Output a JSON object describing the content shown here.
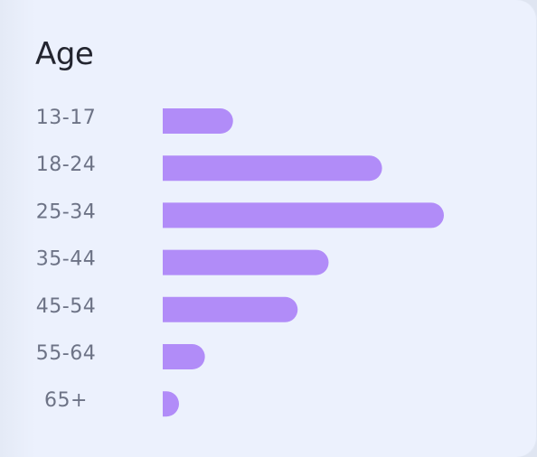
{
  "chart_data": {
    "type": "bar",
    "orientation": "horizontal",
    "title": "Age",
    "xlabel": "",
    "ylabel": "",
    "categories": [
      "13-17",
      "18-24",
      "25-34",
      "35-44",
      "45-54",
      "55-64",
      "65+"
    ],
    "values": [
      25,
      78,
      100,
      59,
      48,
      15,
      5
    ],
    "xlim": [
      0,
      100
    ],
    "grid": false,
    "legend": "none",
    "bar_color": "#b18cf8",
    "background_color": "#ecf1fd"
  }
}
